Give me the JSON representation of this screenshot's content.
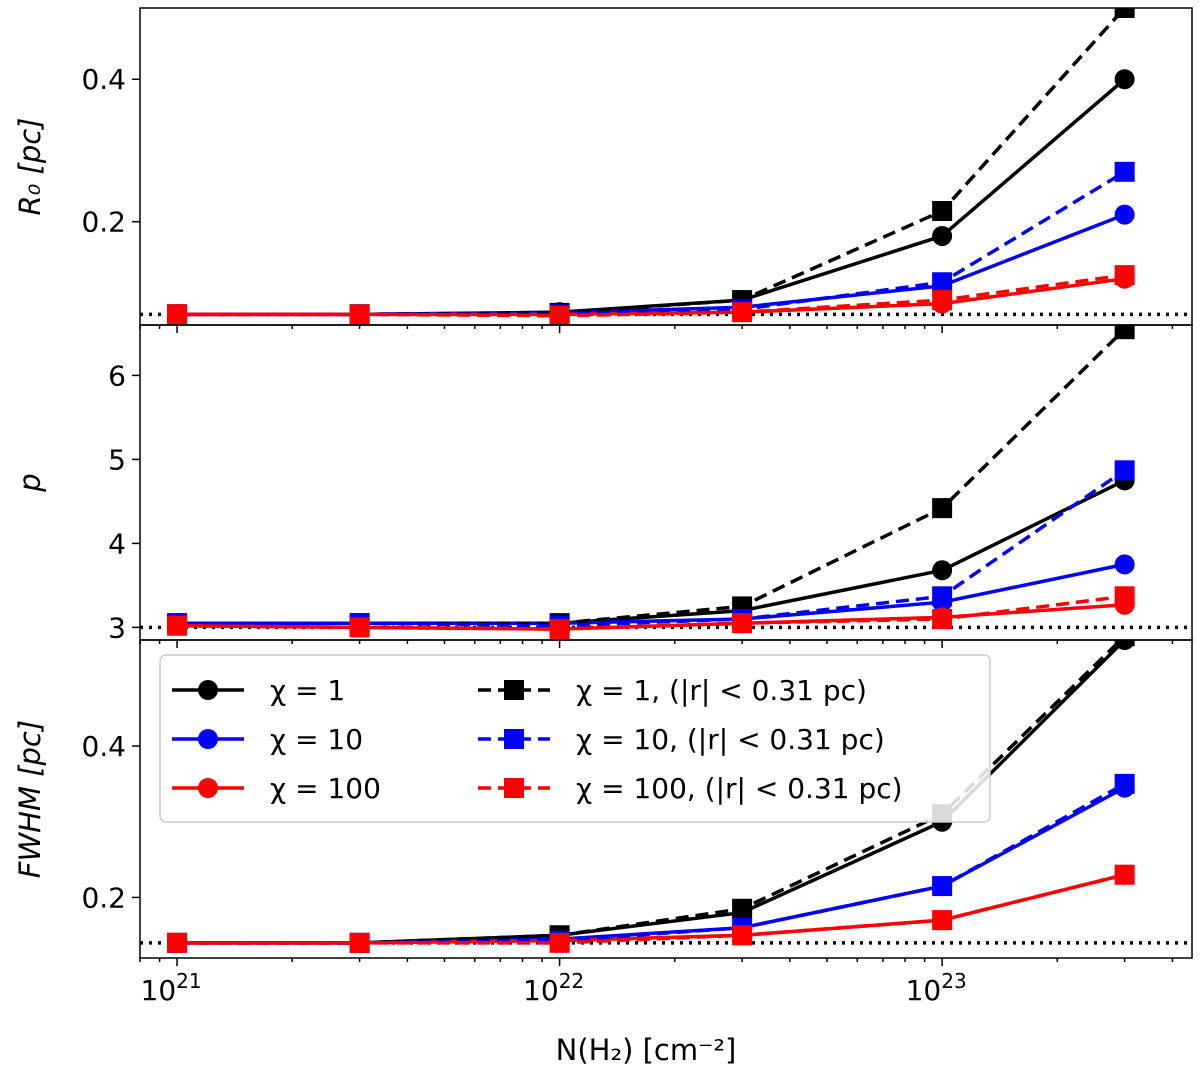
{
  "chart_data": {
    "type": "line",
    "xscale": "log",
    "x": [
      1e+21,
      3e+21,
      1e+22,
      3e+22,
      1e+23,
      3e+23
    ],
    "xlim": [
      8e+20,
      4.5e+23
    ],
    "xlabel": "N(H₂) [cm⁻²]",
    "xticks": [
      {
        "value": 1e+21,
        "base": "10",
        "exp": "21"
      },
      {
        "value": 1e+22,
        "base": "10",
        "exp": "22"
      },
      {
        "value": 1e+23,
        "base": "10",
        "exp": "23"
      }
    ],
    "panels": [
      {
        "ylabel": "R₀ [pc]",
        "ylim": [
          0.055,
          0.5
        ],
        "yticks": [
          {
            "value": 0.2,
            "label": "0.2"
          },
          {
            "value": 0.4,
            "label": "0.4"
          }
        ],
        "hline": 0.07,
        "series": [
          {
            "name": "χ = 1",
            "color": "#000000",
            "marker": "circle",
            "dash": "solid",
            "values": [
              0.07,
              0.07,
              0.073,
              0.09,
              0.18,
              0.4
            ]
          },
          {
            "name": "χ = 10",
            "color": "#0000ff",
            "marker": "circle",
            "dash": "solid",
            "values": [
              0.07,
              0.07,
              0.072,
              0.08,
              0.11,
              0.21
            ]
          },
          {
            "name": "χ = 100",
            "color": "#ff0000",
            "marker": "circle",
            "dash": "solid",
            "values": [
              0.07,
              0.07,
              0.07,
              0.073,
              0.085,
              0.12
            ]
          },
          {
            "name": "χ = 1, (|r| < 0.31 pc)",
            "color": "#000000",
            "marker": "square",
            "dash": "dashed",
            "values": [
              0.07,
              0.07,
              0.072,
              0.09,
              0.215,
              0.5
            ]
          },
          {
            "name": "χ = 10, (|r| < 0.31 pc)",
            "color": "#0000ff",
            "marker": "square",
            "dash": "dashed",
            "values": [
              0.07,
              0.07,
              0.07,
              0.077,
              0.115,
              0.27
            ]
          },
          {
            "name": "χ = 100, (|r| < 0.31 pc)",
            "color": "#ff0000",
            "marker": "square",
            "dash": "dashed",
            "values": [
              0.07,
              0.07,
              0.068,
              0.073,
              0.09,
              0.125
            ]
          }
        ]
      },
      {
        "ylabel": "p",
        "ylim": [
          2.85,
          6.6
        ],
        "yticks": [
          {
            "value": 3,
            "label": "3"
          },
          {
            "value": 4,
            "label": "4"
          },
          {
            "value": 5,
            "label": "5"
          },
          {
            "value": 6,
            "label": "6"
          }
        ],
        "hline": 3.0,
        "series": [
          {
            "name": "χ = 1",
            "color": "#000000",
            "marker": "circle",
            "dash": "solid",
            "values": [
              3.05,
              3.05,
              3.05,
              3.2,
              3.68,
              4.75
            ]
          },
          {
            "name": "χ = 10",
            "color": "#0000ff",
            "marker": "circle",
            "dash": "solid",
            "values": [
              3.05,
              3.05,
              3.05,
              3.1,
              3.3,
              3.75
            ]
          },
          {
            "name": "χ = 100",
            "color": "#ff0000",
            "marker": "circle",
            "dash": "solid",
            "values": [
              3.02,
              3.0,
              2.98,
              3.05,
              3.12,
              3.27
            ]
          },
          {
            "name": "χ = 1, (|r| < 0.31 pc)",
            "color": "#000000",
            "marker": "square",
            "dash": "dashed",
            "values": [
              3.05,
              3.05,
              3.05,
              3.25,
              4.42,
              6.55
            ]
          },
          {
            "name": "χ = 10, (|r| < 0.31 pc)",
            "color": "#0000ff",
            "marker": "square",
            "dash": "dashed",
            "values": [
              3.05,
              3.05,
              3.02,
              3.1,
              3.37,
              4.87
            ]
          },
          {
            "name": "χ = 100, (|r| < 0.31 pc)",
            "color": "#ff0000",
            "marker": "square",
            "dash": "dashed",
            "values": [
              3.02,
              3.0,
              2.98,
              3.05,
              3.1,
              3.37
            ]
          }
        ]
      },
      {
        "ylabel": "FWHM [pc]",
        "ylim": [
          0.12,
          0.54
        ],
        "yticks": [
          {
            "value": 0.2,
            "label": "0.2"
          },
          {
            "value": 0.4,
            "label": "0.4"
          }
        ],
        "hline": 0.14,
        "series": [
          {
            "name": "χ = 1",
            "color": "#000000",
            "marker": "circle",
            "dash": "solid",
            "values": [
              0.14,
              0.14,
              0.15,
              0.18,
              0.3,
              0.54
            ]
          },
          {
            "name": "χ = 10",
            "color": "#0000ff",
            "marker": "circle",
            "dash": "solid",
            "values": [
              0.14,
              0.14,
              0.145,
              0.16,
              0.215,
              0.345
            ]
          },
          {
            "name": "χ = 100",
            "color": "#ff0000",
            "marker": "circle",
            "dash": "solid",
            "values": [
              0.14,
              0.14,
              0.143,
              0.15,
              0.17,
              0.23
            ]
          },
          {
            "name": "χ = 1, (|r| < 0.31 pc)",
            "color": "#000000",
            "marker": "square",
            "dash": "dashed",
            "values": [
              0.14,
              0.14,
              0.15,
              0.185,
              0.31,
              0.545
            ]
          },
          {
            "name": "χ = 10, (|r| < 0.31 pc)",
            "color": "#0000ff",
            "marker": "square",
            "dash": "dashed",
            "values": [
              0.14,
              0.14,
              0.143,
              0.16,
              0.215,
              0.35
            ]
          },
          {
            "name": "χ = 100, (|r| < 0.31 pc)",
            "color": "#ff0000",
            "marker": "square",
            "dash": "dashed",
            "values": [
              0.14,
              0.14,
              0.14,
              0.15,
              0.17,
              0.23
            ]
          }
        ]
      }
    ],
    "legend": {
      "placement": "bottom panel, upper-left",
      "entries": [
        {
          "label": "χ = 1",
          "color": "#000000",
          "marker": "circle",
          "dash": "solid"
        },
        {
          "label": "χ = 10",
          "color": "#0000ff",
          "marker": "circle",
          "dash": "solid"
        },
        {
          "label": "χ = 100",
          "color": "#ff0000",
          "marker": "circle",
          "dash": "solid"
        },
        {
          "label": "χ = 1, (|r| < 0.31 pc)",
          "color": "#000000",
          "marker": "square",
          "dash": "dashed"
        },
        {
          "label": "χ = 10, (|r| < 0.31 pc)",
          "color": "#0000ff",
          "marker": "square",
          "dash": "dashed"
        },
        {
          "label": "χ = 100, (|r| < 0.31 pc)",
          "color": "#ff0000",
          "marker": "square",
          "dash": "dashed"
        }
      ]
    }
  }
}
